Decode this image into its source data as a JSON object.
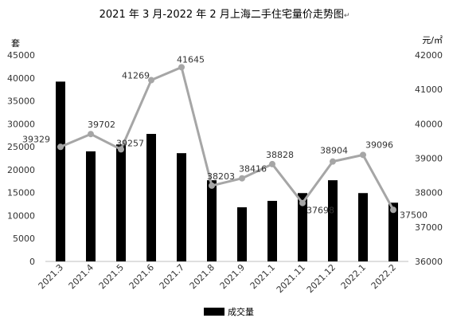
{
  "chart_data": {
    "type": "bar+line",
    "title": "2021 年 3 月-2022 年 2 月上海二手住宅量价走势图",
    "return_mark": "↵",
    "categories": [
      "2021.3",
      "2021.4",
      "2021.5",
      "2021.6",
      "2021.7",
      "2021.8",
      "2021.9",
      "2021.1",
      "2021.11",
      "2021.12",
      "2022.1",
      "2022.2"
    ],
    "bar_series": {
      "name": "成交量",
      "color": "#000000",
      "values": [
        39200,
        24000,
        25500,
        27800,
        23600,
        17700,
        11800,
        13200,
        14900,
        17700,
        14900,
        12800
      ]
    },
    "line_series": {
      "color": "#a6a6a6",
      "values": [
        39329,
        39702,
        39257,
        41269,
        41645,
        38203,
        38416,
        38828,
        37698,
        38904,
        39096,
        37500
      ],
      "labels": [
        "39329",
        "39702",
        "39257",
        "41269",
        "41645",
        "38203",
        "38416",
        "38828",
        "37698",
        "38904",
        "39096",
        "37500"
      ]
    },
    "y_left": {
      "unit": "套",
      "ylim": [
        0,
        45000
      ],
      "ticks": [
        "0",
        "5000",
        "10000",
        "15000",
        "20000",
        "25000",
        "30000",
        "35000",
        "40000",
        "45000"
      ]
    },
    "y_right": {
      "unit": "元/㎡",
      "ylim": [
        36000,
        42000
      ],
      "ticks": [
        "36000",
        "37000",
        "38000",
        "39000",
        "40000",
        "41000",
        "42000"
      ]
    },
    "grid": false,
    "legend": {
      "position": "bottom",
      "entries": [
        "成交量"
      ]
    }
  }
}
